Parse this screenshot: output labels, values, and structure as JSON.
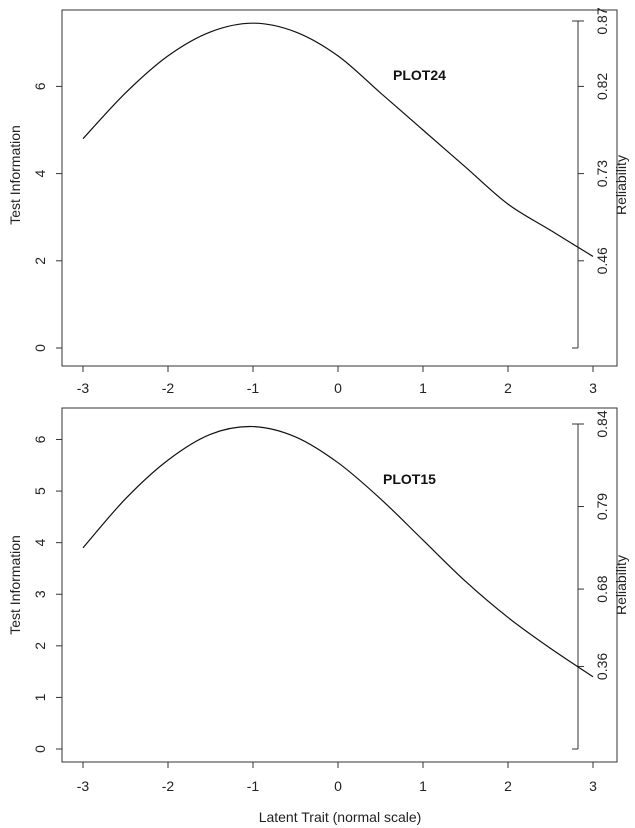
{
  "chart_data": [
    {
      "type": "line",
      "annotation": "PLOT24",
      "xlabel": "",
      "ylabel": "Test Information",
      "ylabel_right": "Reliability",
      "xlim": [
        -3,
        3
      ],
      "ylim": [
        0,
        7.5
      ],
      "x_ticks": [
        -3,
        -2,
        -1,
        0,
        1,
        2,
        3
      ],
      "y_ticks": [
        0,
        2,
        4,
        6
      ],
      "right_axis": {
        "tick_labels": [
          "0.46",
          "0.73",
          "0.82",
          "0.87"
        ],
        "tick_at_left_values": [
          2,
          4,
          6,
          7.5
        ]
      },
      "series": [
        {
          "x": [
            -3,
            -2.5,
            -2,
            -1.5,
            -1,
            -0.5,
            0,
            0.5,
            1,
            1.5,
            2,
            2.5,
            3
          ],
          "y": [
            4.8,
            5.85,
            6.7,
            7.25,
            7.45,
            7.25,
            6.7,
            5.85,
            5.0,
            4.15,
            3.3,
            2.7,
            2.1
          ]
        }
      ],
      "grid": false
    },
    {
      "type": "line",
      "annotation": "PLOT15",
      "xlabel": "Latent Trait (normal scale)",
      "ylabel": "Test Information",
      "ylabel_right": "Reliability",
      "xlim": [
        -3,
        3
      ],
      "ylim": [
        0,
        6.3
      ],
      "x_ticks": [
        -3,
        -2,
        -1,
        0,
        1,
        2,
        3
      ],
      "y_ticks": [
        0,
        1,
        2,
        3,
        4,
        5,
        6
      ],
      "right_axis": {
        "tick_labels": [
          "0.36",
          "0.68",
          "0.79",
          "0.84"
        ],
        "tick_at_left_values": [
          1.6,
          3.1,
          4.7,
          6.3
        ]
      },
      "series": [
        {
          "x": [
            -3,
            -2.5,
            -2,
            -1.5,
            -1,
            -0.5,
            0,
            0.5,
            1,
            1.5,
            2,
            2.5,
            3
          ],
          "y": [
            3.9,
            4.85,
            5.6,
            6.1,
            6.25,
            6.05,
            5.55,
            4.85,
            4.05,
            3.25,
            2.55,
            1.95,
            1.4
          ]
        }
      ],
      "grid": false
    }
  ]
}
